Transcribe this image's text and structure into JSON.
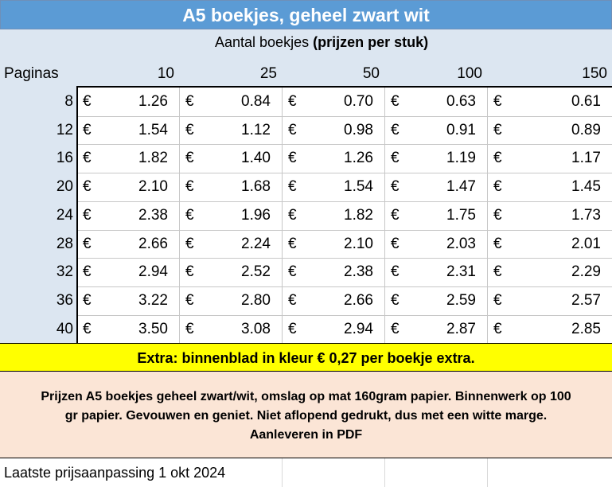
{
  "title": "A5 boekjes, geheel zwart wit",
  "subtitle": {
    "normal": "Aantal boekjes ",
    "bold": "(prijzen per stuk)"
  },
  "table": {
    "row_header": "Paginas",
    "quantities": [
      "10",
      "25",
      "50",
      "100",
      "150"
    ],
    "currency": "€",
    "rows": [
      {
        "pages": "8",
        "prices": [
          "1.26",
          "0.84",
          "0.70",
          "0.63",
          "0.61"
        ]
      },
      {
        "pages": "12",
        "prices": [
          "1.54",
          "1.12",
          "0.98",
          "0.91",
          "0.89"
        ]
      },
      {
        "pages": "16",
        "prices": [
          "1.82",
          "1.40",
          "1.26",
          "1.19",
          "1.17"
        ]
      },
      {
        "pages": "20",
        "prices": [
          "2.10",
          "1.68",
          "1.54",
          "1.47",
          "1.45"
        ]
      },
      {
        "pages": "24",
        "prices": [
          "2.38",
          "1.96",
          "1.82",
          "1.75",
          "1.73"
        ]
      },
      {
        "pages": "28",
        "prices": [
          "2.66",
          "2.24",
          "2.10",
          "2.03",
          "2.01"
        ]
      },
      {
        "pages": "32",
        "prices": [
          "2.94",
          "2.52",
          "2.38",
          "2.31",
          "2.29"
        ]
      },
      {
        "pages": "36",
        "prices": [
          "3.22",
          "2.80",
          "2.66",
          "2.59",
          "2.57"
        ]
      },
      {
        "pages": "40",
        "prices": [
          "3.50",
          "3.08",
          "2.94",
          "2.87",
          "2.85"
        ]
      }
    ]
  },
  "extra": "Extra: binnenblad in kleur € 0,27 per boekje extra.",
  "note": {
    "line1": "Prijzen A5 boekjes geheel zwart/wit, omslag op mat 160gram papier. Binnenwerk op 100",
    "line2": "gr papier.  Gevouwen en geniet. Niet aflopend gedrukt, dus met een witte marge.",
    "line3": "Aanleveren in PDF"
  },
  "footer": "Laatste prijsaanpassing 1 okt 2024",
  "colors": {
    "title_bg": "#5b9bd5",
    "header_bg": "#dce6f1",
    "extra_bg": "#ffff00",
    "note_bg": "#fbe5d6"
  }
}
